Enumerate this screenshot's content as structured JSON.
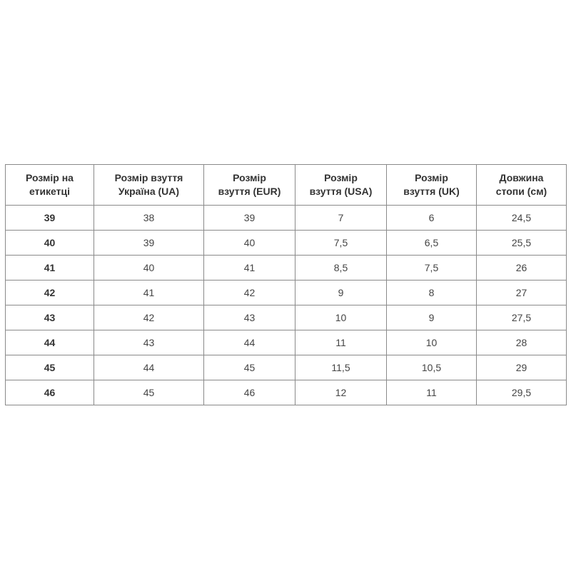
{
  "table": {
    "headers": [
      [
        "Розмір на",
        "етикетці"
      ],
      [
        "Розмір взуття",
        "Україна (UA)"
      ],
      [
        "Розмір",
        "взуття (EUR)"
      ],
      [
        "Розмір",
        "взуття (USA)"
      ],
      [
        "Розмір",
        "взуття (UK)"
      ],
      [
        "Довжина",
        "стопи (см)"
      ]
    ],
    "rows": [
      [
        "39",
        "38",
        "39",
        "7",
        "6",
        "24,5"
      ],
      [
        "40",
        "39",
        "40",
        "7,5",
        "6,5",
        "25,5"
      ],
      [
        "41",
        "40",
        "41",
        "8,5",
        "7,5",
        "26"
      ],
      [
        "42",
        "41",
        "42",
        "9",
        "8",
        "27"
      ],
      [
        "43",
        "42",
        "43",
        "10",
        "9",
        "27,5"
      ],
      [
        "44",
        "43",
        "44",
        "11",
        "10",
        "28"
      ],
      [
        "45",
        "44",
        "45",
        "11,5",
        "10,5",
        "29"
      ],
      [
        "46",
        "45",
        "46",
        "12",
        "11",
        "29,5"
      ]
    ]
  }
}
